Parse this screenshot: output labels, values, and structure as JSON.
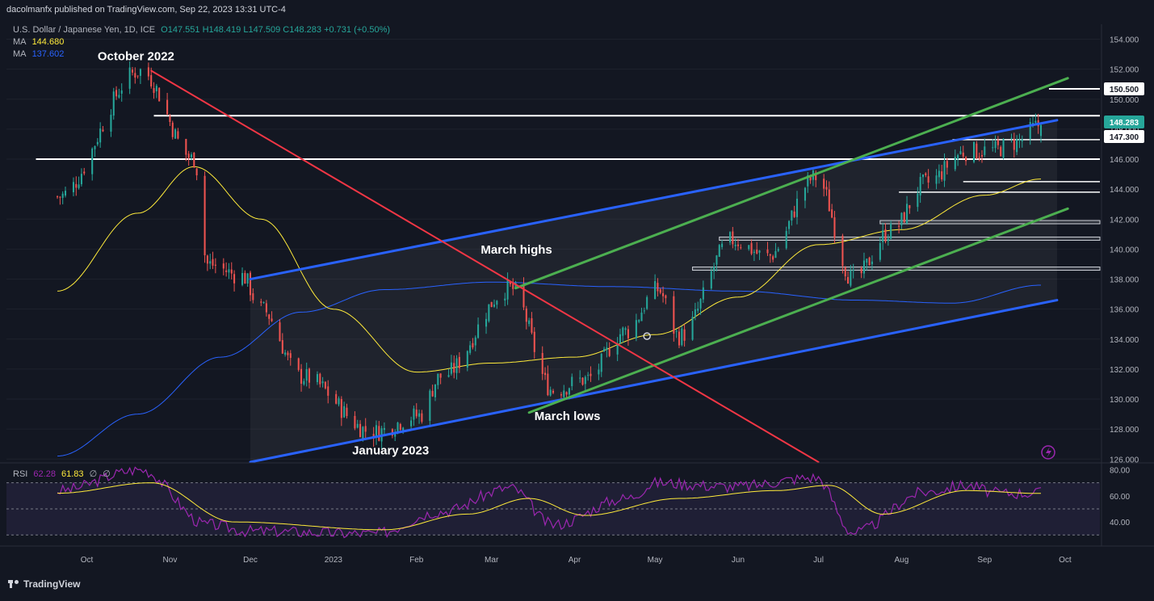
{
  "header": {
    "published": "dacolmanfx published on TradingView.com, Sep 22, 2023 13:31 UTC-4"
  },
  "legend": {
    "symbol": "U.S. Dollar / Japanese Yen, 1D, ICE",
    "open": "O147.551",
    "high": "H148.419",
    "low": "L147.509",
    "close": "C148.283",
    "change": "+0.731 (+0.50%)",
    "ma1_label": "MA",
    "ma1_value": "144.680",
    "ma2_label": "MA",
    "ma2_value": "137.602"
  },
  "rsi_legend": {
    "label": "RSI",
    "value": "62.28",
    "ma_value": "61.83",
    "extra1": "∅",
    "extra2": "∅"
  },
  "footer": {
    "brand": "TradingView"
  },
  "colors": {
    "up": "#26a69a",
    "down": "#ef5350",
    "blue_channel": "#2962ff",
    "green_channel": "#4caf50",
    "red_trend": "#f23645",
    "ma_short": "#ffeb3b",
    "ma_long": "#2962ff",
    "rsi": "#9c27b0",
    "background": "#131722"
  },
  "annotations": [
    {
      "text": "October 2022"
    },
    {
      "text": "March highs"
    },
    {
      "text": "March lows"
    },
    {
      "text": "January 2023"
    }
  ],
  "chart_data": {
    "type": "candlestick",
    "title": "U.S. Dollar / Japanese Yen, 1D, ICE",
    "y_axis": {
      "ticks": [
        "154.000",
        "152.000",
        "150.000",
        "148.000",
        "146.000",
        "144.000",
        "142.000",
        "140.000",
        "138.000",
        "136.000",
        "134.000",
        "132.000",
        "130.000",
        "128.000",
        "126.000"
      ],
      "range": [
        125.8,
        155.0
      ]
    },
    "x_axis": {
      "ticks": [
        "Oct",
        "Nov",
        "Dec",
        "2023",
        "Feb",
        "Mar",
        "Apr",
        "May",
        "Jun",
        "Jul",
        "Aug",
        "Sep",
        "Oct"
      ]
    },
    "price_labels": [
      {
        "value": "150.500",
        "style": "level"
      },
      {
        "value": "148.283",
        "style": "current"
      },
      {
        "value": "147.300",
        "style": "level"
      }
    ],
    "horizontal_levels": [
      148.9,
      147.3,
      146.0,
      144.5,
      143.8,
      141.8,
      140.7,
      138.7
    ],
    "anchors": [
      {
        "date": "2022-09-20",
        "price": 143.5
      },
      {
        "date": "2022-10-21",
        "price": 151.9
      },
      {
        "date": "2022-11-10",
        "price": 146.0
      },
      {
        "date": "2022-11-15",
        "price": 139.0
      },
      {
        "date": "2022-11-28",
        "price": 138.2
      },
      {
        "date": "2022-12-05",
        "price": 136.0
      },
      {
        "date": "2022-12-20",
        "price": 131.5
      },
      {
        "date": "2023-01-16",
        "price": 127.8
      },
      {
        "date": "2023-02-02",
        "price": 128.9
      },
      {
        "date": "2023-02-10",
        "price": 131.5
      },
      {
        "date": "2023-03-08",
        "price": 137.4
      },
      {
        "date": "2023-03-24",
        "price": 130.6
      },
      {
        "date": "2023-04-05",
        "price": 131.3
      },
      {
        "date": "2023-04-20",
        "price": 134.5
      },
      {
        "date": "2023-05-02",
        "price": 137.3
      },
      {
        "date": "2023-05-10",
        "price": 134.2
      },
      {
        "date": "2023-05-30",
        "price": 140.6
      },
      {
        "date": "2023-06-12",
        "price": 139.5
      },
      {
        "date": "2023-06-30",
        "price": 144.8
      },
      {
        "date": "2023-07-14",
        "price": 138.0
      },
      {
        "date": "2023-07-28",
        "price": 141.2
      },
      {
        "date": "2023-08-10",
        "price": 144.4
      },
      {
        "date": "2023-08-25",
        "price": 146.5
      },
      {
        "date": "2023-09-04",
        "price": 146.6
      },
      {
        "date": "2023-09-12",
        "price": 147.1
      },
      {
        "date": "2023-09-22",
        "price": 148.28
      }
    ],
    "trendlines": [
      {
        "name": "blue-upper",
        "from": {
          "date": "2022-12-01",
          "price": 138.0
        },
        "to": {
          "date": "2023-09-28",
          "price": 148.6
        }
      },
      {
        "name": "blue-lower",
        "from": {
          "date": "2022-12-01",
          "price": 125.8
        },
        "to": {
          "date": "2023-09-28",
          "price": 136.6
        }
      },
      {
        "name": "green-upper",
        "from": {
          "date": "2023-03-10",
          "price": 137.4
        },
        "to": {
          "date": "2023-10-02",
          "price": 151.4
        }
      },
      {
        "name": "green-lower",
        "from": {
          "date": "2023-03-15",
          "price": 129.1
        },
        "to": {
          "date": "2023-10-02",
          "price": 142.7
        }
      },
      {
        "name": "red-downtrend",
        "from": {
          "date": "2022-10-25",
          "price": 151.9
        },
        "to": {
          "date": "2023-07-01",
          "price": 125.8
        }
      }
    ],
    "ma_short_anchors": [
      {
        "date": "2022-09-20",
        "price": 137.2
      },
      {
        "date": "2022-10-20",
        "price": 142.4
      },
      {
        "date": "2022-11-10",
        "price": 145.5
      },
      {
        "date": "2022-12-05",
        "price": 142.0
      },
      {
        "date": "2023-01-01",
        "price": 136.0
      },
      {
        "date": "2023-02-01",
        "price": 131.8
      },
      {
        "date": "2023-03-01",
        "price": 132.4
      },
      {
        "date": "2023-04-01",
        "price": 132.8
      },
      {
        "date": "2023-05-01",
        "price": 134.3
      },
      {
        "date": "2023-06-01",
        "price": 136.8
      },
      {
        "date": "2023-07-01",
        "price": 140.3
      },
      {
        "date": "2023-08-01",
        "price": 141.3
      },
      {
        "date": "2023-09-01",
        "price": 143.6
      },
      {
        "date": "2023-09-22",
        "price": 144.68
      }
    ],
    "ma_long_anchors": [
      {
        "date": "2022-09-20",
        "price": 126.2
      },
      {
        "date": "2022-10-20",
        "price": 129.0
      },
      {
        "date": "2022-11-20",
        "price": 132.8
      },
      {
        "date": "2022-12-20",
        "price": 135.8
      },
      {
        "date": "2023-01-20",
        "price": 137.3
      },
      {
        "date": "2023-03-01",
        "price": 137.8
      },
      {
        "date": "2023-04-15",
        "price": 137.5
      },
      {
        "date": "2023-06-01",
        "price": 137.2
      },
      {
        "date": "2023-07-15",
        "price": 136.6
      },
      {
        "date": "2023-08-20",
        "price": 136.4
      },
      {
        "date": "2023-09-22",
        "price": 137.6
      }
    ],
    "rsi": {
      "y_ticks": [
        "80.00",
        "60.00",
        "40.00"
      ],
      "range": [
        24,
        84
      ],
      "bands": [
        70,
        50,
        30
      ],
      "anchors": [
        {
          "date": "2022-09-20",
          "price": 64
        },
        {
          "date": "2022-10-21",
          "price": 80
        },
        {
          "date": "2022-11-15",
          "price": 38
        },
        {
          "date": "2022-12-01",
          "price": 33
        },
        {
          "date": "2023-01-16",
          "price": 31
        },
        {
          "date": "2023-02-10",
          "price": 48
        },
        {
          "date": "2023-03-08",
          "price": 66
        },
        {
          "date": "2023-03-24",
          "price": 38
        },
        {
          "date": "2023-04-20",
          "price": 58
        },
        {
          "date": "2023-05-02",
          "price": 70
        },
        {
          "date": "2023-05-30",
          "price": 67
        },
        {
          "date": "2023-06-30",
          "price": 74
        },
        {
          "date": "2023-07-14",
          "price": 32
        },
        {
          "date": "2023-08-10",
          "price": 63
        },
        {
          "date": "2023-08-25",
          "price": 68
        },
        {
          "date": "2023-09-06",
          "price": 62
        },
        {
          "date": "2023-09-22",
          "price": 62.28
        }
      ],
      "ma_anchors": [
        {
          "date": "2022-09-20",
          "price": 62
        },
        {
          "date": "2022-10-25",
          "price": 70
        },
        {
          "date": "2022-11-25",
          "price": 40
        },
        {
          "date": "2023-01-20",
          "price": 34
        },
        {
          "date": "2023-02-20",
          "price": 46
        },
        {
          "date": "2023-03-15",
          "price": 58
        },
        {
          "date": "2023-04-05",
          "price": 45
        },
        {
          "date": "2023-05-10",
          "price": 58
        },
        {
          "date": "2023-06-15",
          "price": 64
        },
        {
          "date": "2023-07-05",
          "price": 68
        },
        {
          "date": "2023-07-25",
          "price": 46
        },
        {
          "date": "2023-08-25",
          "price": 64
        },
        {
          "date": "2023-09-22",
          "price": 61.83
        }
      ]
    }
  }
}
